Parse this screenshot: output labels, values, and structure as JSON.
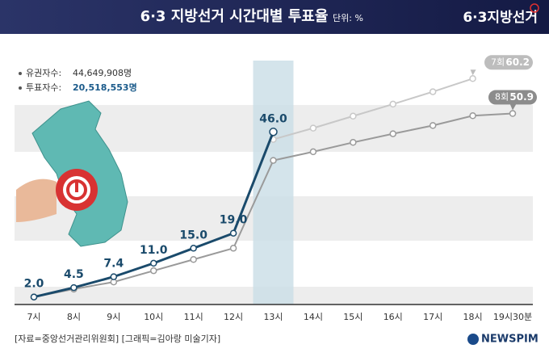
{
  "header": {
    "title": "6·3 지방선거 시간대별 투표율",
    "unit": "단위: %",
    "logo": "6·3지방선거"
  },
  "stats": {
    "voters_label": "유권자수:",
    "voters_value": "44,649,908명",
    "turnout_label": "투표자수:",
    "turnout_value": "20,518,553명"
  },
  "chart_data": {
    "type": "line",
    "categories": [
      "7시",
      "8시",
      "9시",
      "10시",
      "11시",
      "12시",
      "13시",
      "14시",
      "15시",
      "16시",
      "17시",
      "18시",
      "19시30분"
    ],
    "series": [
      {
        "color": "#1a4a6b",
        "values": [
          2.0,
          4.5,
          7.4,
          11.0,
          15.0,
          19.0,
          46.0,
          null,
          null,
          null,
          null,
          null,
          null
        ],
        "value_labels": [
          "2.0",
          "4.5",
          "7.4",
          "11.0",
          "15.0",
          "19.0",
          "46.0",
          null,
          null,
          null,
          null,
          null,
          null
        ]
      },
      {
        "name": "7회",
        "color": "#c8c8c8",
        "values": [
          null,
          null,
          null,
          null,
          null,
          null,
          44.0,
          47.0,
          50.2,
          53.4,
          56.7,
          60.2,
          null
        ],
        "value_labels": [
          null,
          null,
          null,
          null,
          null,
          null,
          null,
          null,
          null,
          null,
          null,
          "60.2",
          null
        ]
      },
      {
        "name": "8회",
        "color": "#9a9a9a",
        "values": [
          2.0,
          4.1,
          6.0,
          9.0,
          12.0,
          15.0,
          38.4,
          40.7,
          43.2,
          45.5,
          47.7,
          50.3,
          50.9
        ],
        "value_labels": [
          null,
          null,
          null,
          null,
          null,
          null,
          null,
          null,
          null,
          null,
          null,
          null,
          "50.9"
        ]
      }
    ],
    "ylim": [
      0,
      65
    ],
    "highlight_index": 6
  },
  "footer": {
    "source": "[자료=중앙선거관리위원회] [그래픽=김아랑 미술기자]",
    "brand": "NEWSPIM"
  }
}
